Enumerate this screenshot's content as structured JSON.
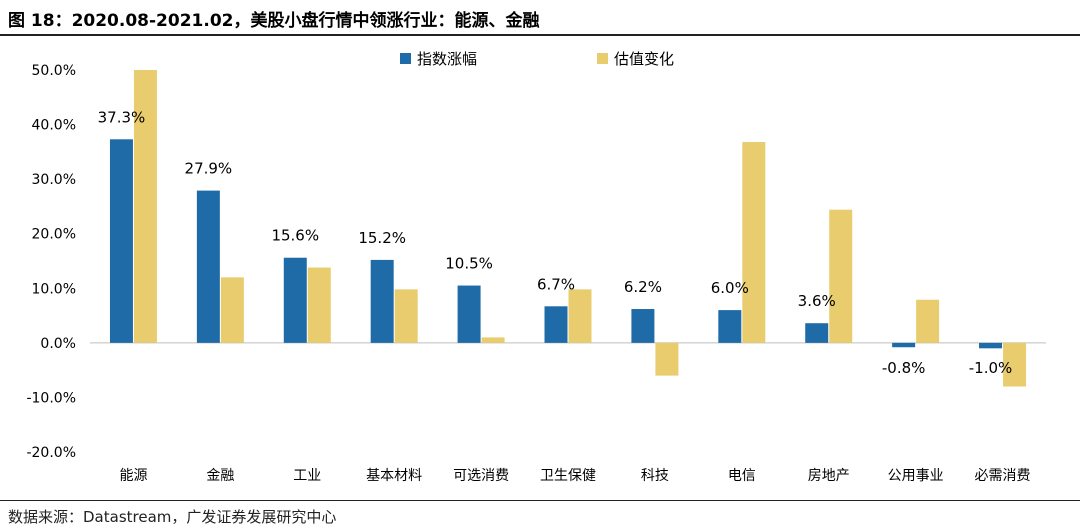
{
  "title": "图 18：2020.08-2021.02，美股小盘行情中领涨行业：能源、金融",
  "source": "数据来源：Datastream，广发证券发展研究中心",
  "colors": {
    "series_1": "#1F6BA8",
    "series_2": "#E8CC6E"
  },
  "chart_data": {
    "type": "bar",
    "title": "",
    "xlabel": "",
    "ylabel": "",
    "ylim": [
      -20,
      50
    ],
    "yticks": [
      -20,
      -10,
      0,
      10,
      20,
      30,
      40,
      50
    ],
    "ytick_labels": [
      "-20.0%",
      "-10.0%",
      "0.0%",
      "10.0%",
      "20.0%",
      "30.0%",
      "40.0%",
      "50.0%"
    ],
    "grid": false,
    "legend_position": "top-right",
    "categories": [
      "能源",
      "金融",
      "工业",
      "基本材料",
      "可选消费",
      "卫生保健",
      "科技",
      "电信",
      "房地产",
      "公用事业",
      "必需消费"
    ],
    "series": [
      {
        "name": "指数涨幅",
        "values": [
          37.3,
          27.9,
          15.6,
          15.2,
          10.5,
          6.7,
          6.2,
          6.0,
          3.6,
          -0.8,
          -1.0
        ],
        "labels": [
          "37.3%",
          "27.9%",
          "15.6%",
          "15.2%",
          "10.5%",
          "6.7%",
          "6.2%",
          "6.0%",
          "3.6%",
          "-0.8%",
          "-1.0%"
        ]
      },
      {
        "name": "估值变化",
        "values": [
          50.0,
          12.0,
          13.8,
          9.8,
          1.0,
          9.8,
          -6.0,
          36.8,
          24.4,
          7.9,
          -8.0
        ]
      }
    ]
  }
}
